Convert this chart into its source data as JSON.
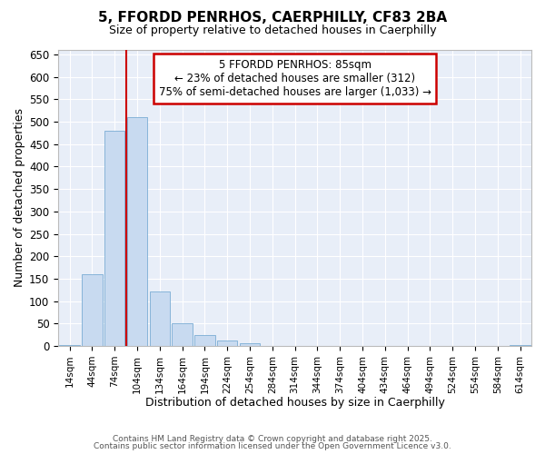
{
  "title_line1": "5, FFORDD PENRHOS, CAERPHILLY, CF83 2BA",
  "title_line2": "Size of property relative to detached houses in Caerphilly",
  "xlabel": "Distribution of detached houses by size in Caerphilly",
  "ylabel": "Number of detached properties",
  "bar_color": "#c8daf0",
  "bar_edge_color": "#7aadd4",
  "categories": [
    "14sqm",
    "44sqm",
    "74sqm",
    "104sqm",
    "134sqm",
    "164sqm",
    "194sqm",
    "224sqm",
    "254sqm",
    "284sqm",
    "314sqm",
    "344sqm",
    "374sqm",
    "404sqm",
    "434sqm",
    "464sqm",
    "494sqm",
    "524sqm",
    "554sqm",
    "584sqm",
    "614sqm"
  ],
  "values": [
    2,
    160,
    480,
    510,
    122,
    50,
    24,
    12,
    7,
    0,
    0,
    0,
    0,
    0,
    0,
    0,
    0,
    0,
    0,
    0,
    2
  ],
  "ylim": [
    0,
    660
  ],
  "yticks": [
    0,
    50,
    100,
    150,
    200,
    250,
    300,
    350,
    400,
    450,
    500,
    550,
    600,
    650
  ],
  "annotation_text": "5 FFORDD PENRHOS: 85sqm\n← 23% of detached houses are smaller (312)\n75% of semi-detached houses are larger (1,033) →",
  "annotation_box_color": "#ffffff",
  "annotation_box_edge_color": "#cc0000",
  "bg_color": "#ffffff",
  "plot_bg_color": "#e8eef8",
  "grid_color": "#ffffff",
  "footer_line1": "Contains HM Land Registry data © Crown copyright and database right 2025.",
  "footer_line2": "Contains public sector information licensed under the Open Government Licence v3.0."
}
